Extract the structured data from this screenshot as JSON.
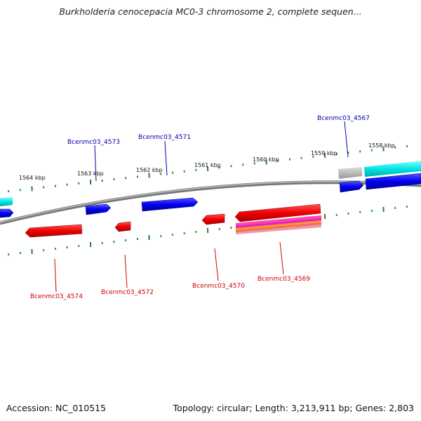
{
  "title": "Burkholderia cenocepacia MC0-3 chromosome 2, complete sequen...",
  "footer": {
    "accession": "Accession: NC_010515",
    "summary": "Topology: circular; Length: 3,213,911 bp; Genes: 2,803"
  },
  "kbp_labels": [
    "1564 kbp",
    "1563 kbp",
    "1562 kbp",
    "1561 kbp",
    "1560 kbp",
    "1559 kbp",
    "1558 kbp"
  ],
  "genes_forward": [
    "Bcenmc03_4573",
    "Bcenmc03_4571",
    "Bcenmc03_4567"
  ],
  "genes_reverse": [
    "Bcenmc03_4574",
    "Bcenmc03_4572",
    "Bcenmc03_4570",
    "Bcenmc03_4569"
  ],
  "colors": {
    "forward": "#0000ee",
    "reverse": "#ee0000",
    "backbone": "#808080",
    "ticks": "#228822",
    "cyan": "#00dddd",
    "grey": "#aaaaaa",
    "forward_label": "#0000aa",
    "reverse_label": "#cc0000"
  }
}
